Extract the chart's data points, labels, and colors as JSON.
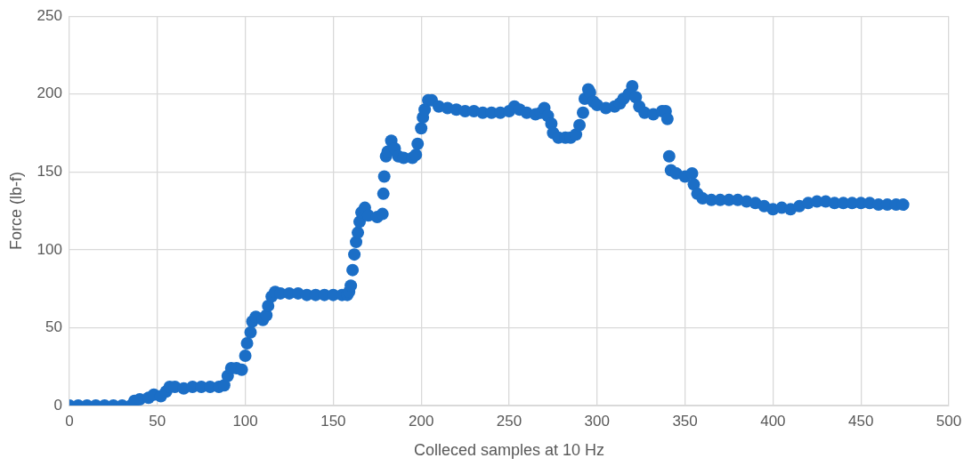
{
  "chart_data": {
    "type": "scatter",
    "xlabel": "Colleced samples at 10 Hz",
    "ylabel": "Force (lb-f)",
    "xlim": [
      0,
      500
    ],
    "xticks": [
      0,
      50,
      100,
      150,
      200,
      250,
      300,
      350,
      400,
      450,
      500
    ],
    "ylim": [
      0,
      250
    ],
    "yticks": [
      0,
      50,
      100,
      150,
      200,
      250
    ],
    "grid": true,
    "legend": false,
    "marker": "circle",
    "series": [
      {
        "color": "#1b6ec6",
        "x": [
          0,
          5,
          10,
          15,
          20,
          25,
          30,
          35,
          37,
          40,
          45,
          48,
          52,
          55,
          57,
          60,
          65,
          70,
          75,
          80,
          85,
          88,
          90,
          92,
          95,
          98,
          100,
          101,
          103,
          104,
          106,
          110,
          112,
          113,
          115,
          117,
          120,
          125,
          130,
          135,
          140,
          145,
          150,
          155,
          158,
          159,
          160,
          161,
          162,
          163,
          164,
          165,
          166,
          168,
          170,
          175,
          178,
          178.5,
          179,
          180,
          181,
          183,
          185,
          187,
          190,
          195,
          197,
          198,
          200,
          201,
          202,
          204,
          206,
          210,
          215,
          220,
          225,
          230,
          235,
          240,
          245,
          250,
          253,
          256,
          260,
          265,
          268,
          270,
          272,
          274,
          275,
          278,
          282,
          285,
          288,
          290,
          292,
          293,
          295,
          296,
          298,
          300,
          305,
          310,
          313,
          315,
          318,
          320,
          322,
          324,
          327,
          332,
          337,
          339,
          340,
          341,
          342,
          345,
          350,
          354,
          355,
          357,
          360,
          365,
          370,
          375,
          380,
          385,
          390,
          395,
          400,
          405,
          410,
          415,
          420,
          425,
          430,
          435,
          440,
          445,
          450,
          455,
          460,
          465,
          470,
          474
        ],
        "values": [
          0,
          0,
          0,
          0,
          0,
          0,
          0,
          0,
          3,
          4,
          5,
          7,
          6,
          9,
          12,
          12,
          11,
          12,
          12,
          12,
          12,
          13,
          19,
          24,
          24,
          23,
          32,
          40,
          47,
          54,
          57,
          55,
          58,
          64,
          70,
          73,
          72,
          72,
          72,
          71,
          71,
          71,
          71,
          71,
          71,
          73,
          77,
          87,
          97,
          105,
          111,
          118,
          124,
          127,
          122,
          121,
          123,
          136,
          147,
          160,
          163,
          170,
          165,
          160,
          159,
          159,
          161,
          168,
          178,
          185,
          190,
          196,
          196,
          192,
          191,
          190,
          189,
          189,
          188,
          188,
          188,
          189,
          192,
          190,
          188,
          187,
          188,
          191,
          186,
          181,
          175,
          172,
          172,
          172,
          174,
          180,
          188,
          197,
          203,
          201,
          195,
          193,
          191,
          192,
          194,
          197,
          200,
          205,
          198,
          192,
          188,
          187,
          189,
          189,
          184,
          160,
          151,
          149,
          147,
          149,
          142,
          136,
          133,
          132,
          132,
          132,
          132,
          131,
          130,
          128,
          126,
          127,
          126,
          128,
          130,
          131,
          131,
          130,
          130,
          130,
          130,
          130,
          129,
          129,
          129,
          129
        ]
      }
    ]
  }
}
